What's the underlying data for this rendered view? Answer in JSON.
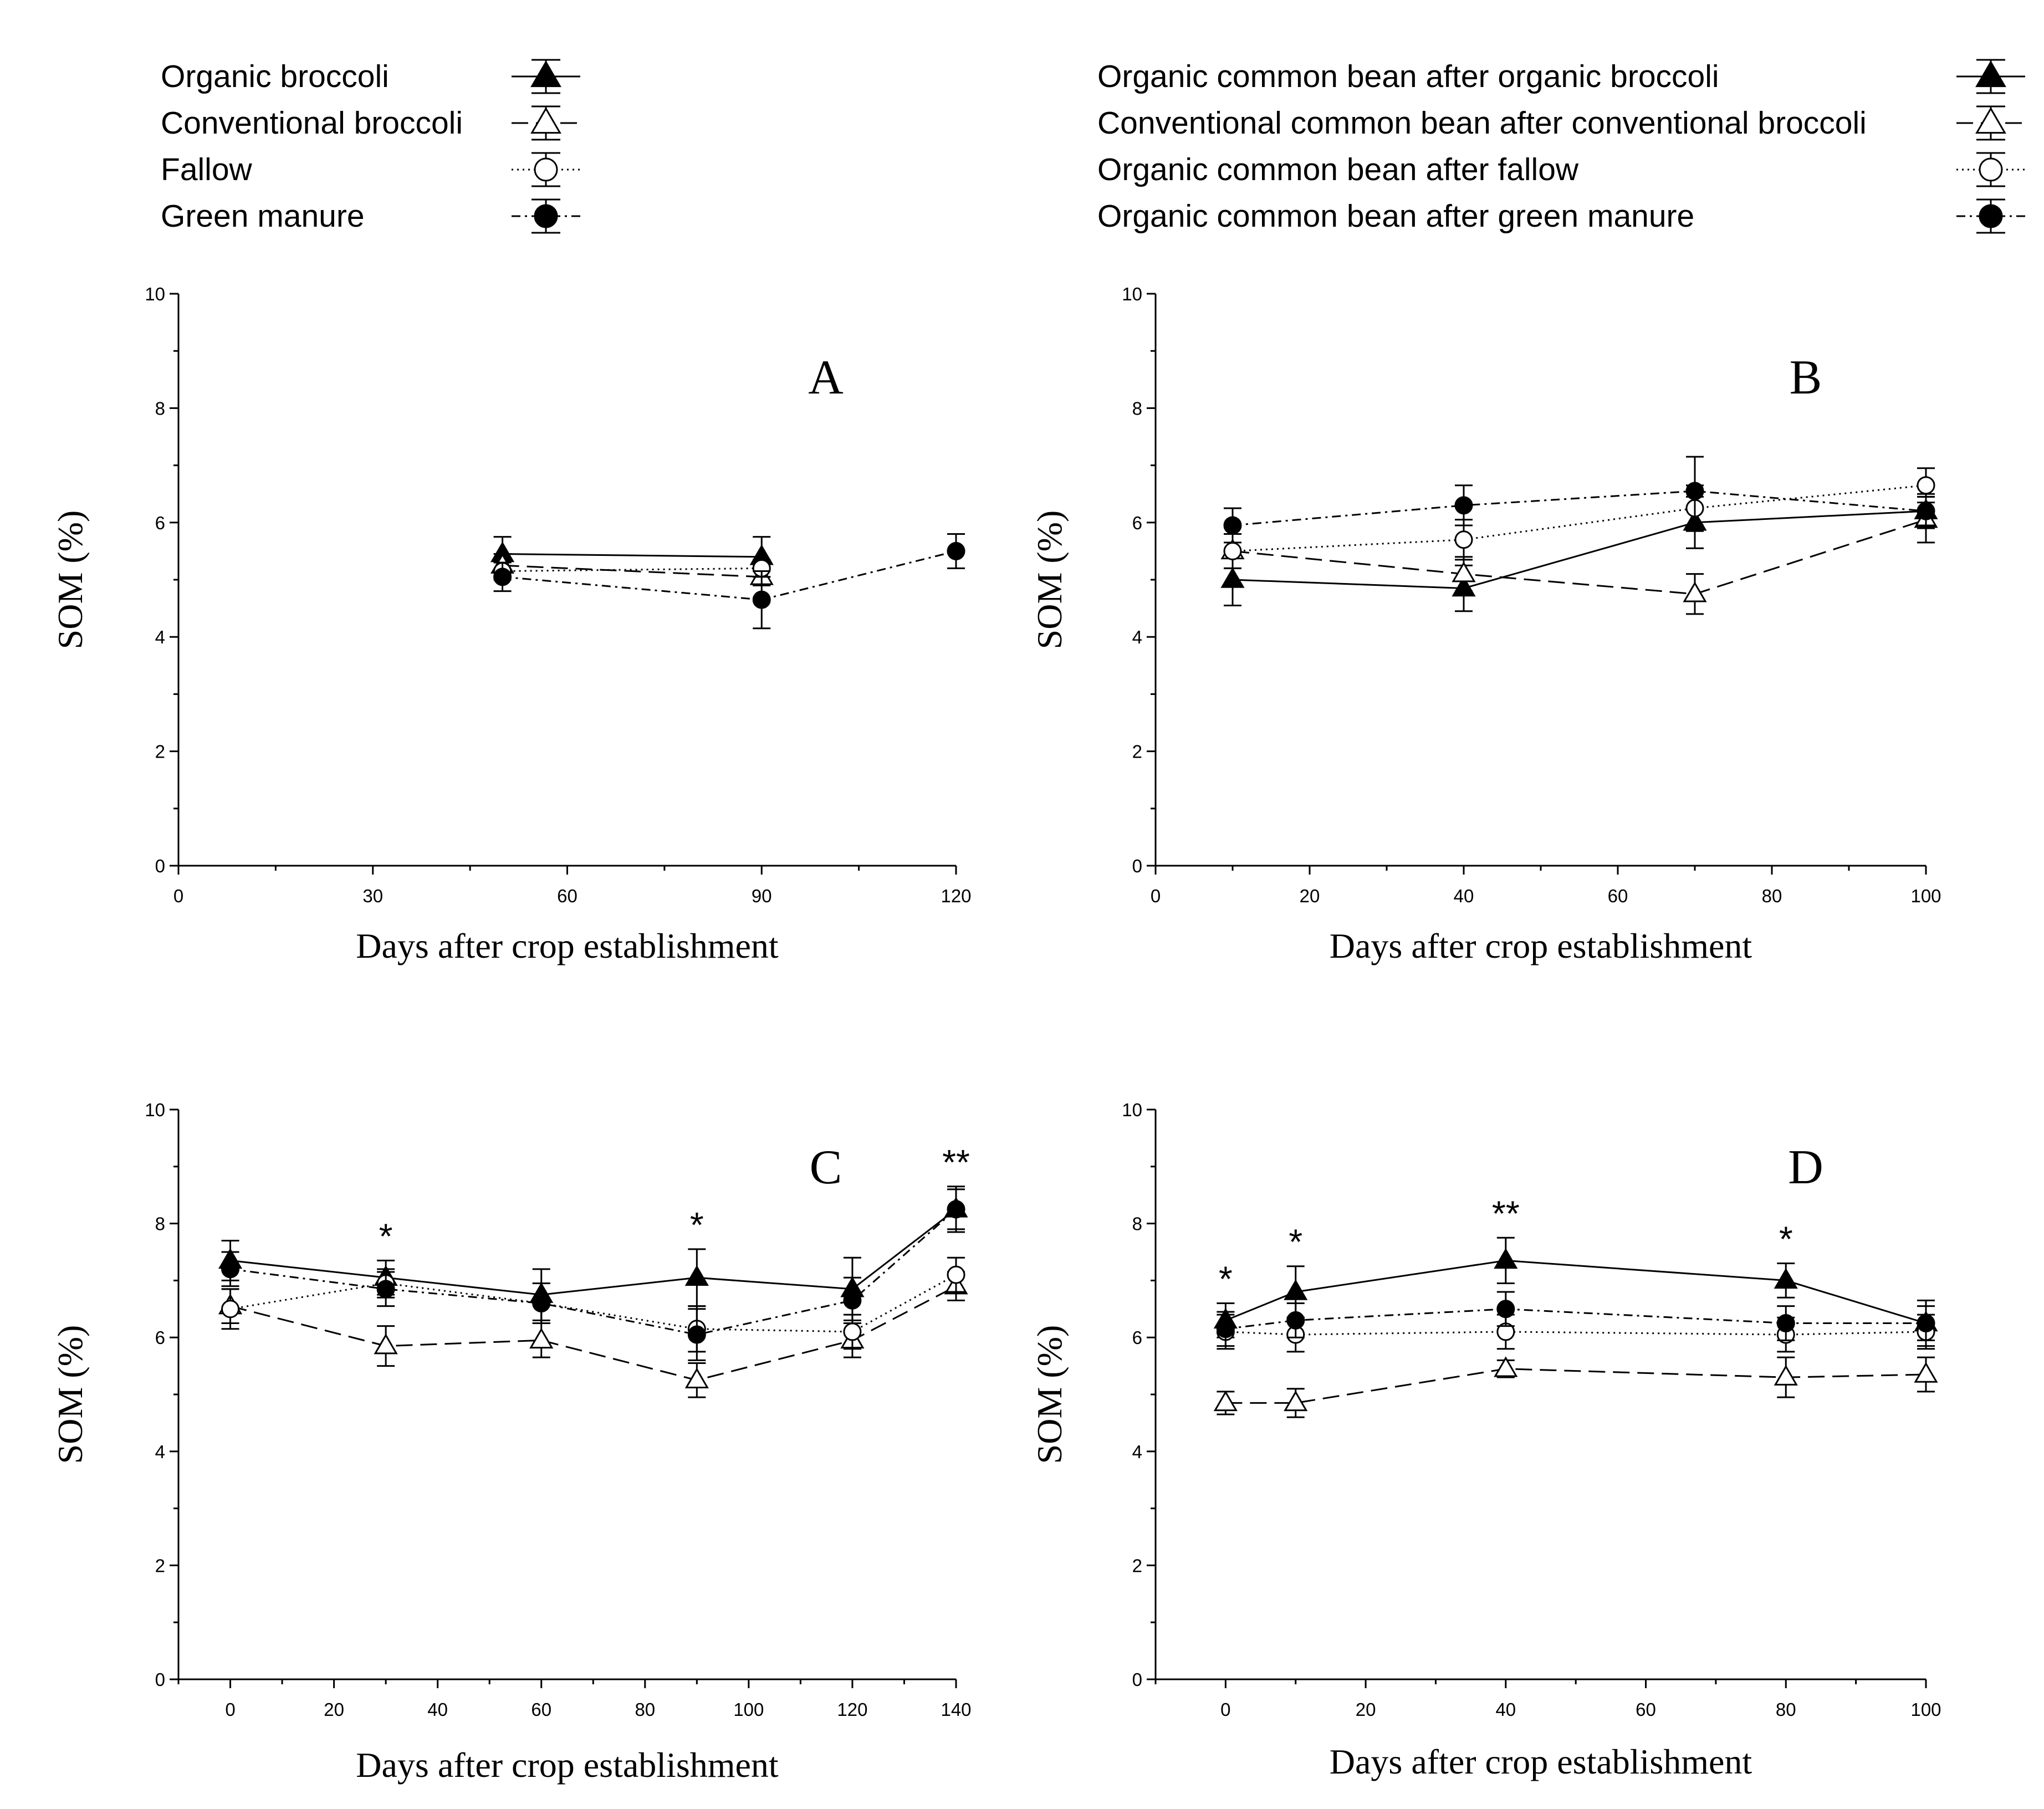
{
  "legend_left": [
    {
      "label": "Organic broccoli",
      "key": "s1"
    },
    {
      "label": "Conventional broccoli",
      "key": "s2"
    },
    {
      "label": "Fallow",
      "key": "s3"
    },
    {
      "label": "Green manure",
      "key": "s4"
    }
  ],
  "legend_right": [
    {
      "label": "Organic common bean after organic broccoli",
      "key": "s1"
    },
    {
      "label": "Conventional common bean after conventional broccoli",
      "key": "s2"
    },
    {
      "label": "Organic common bean after fallow",
      "key": "s3"
    },
    {
      "label": "Organic common bean after green manure",
      "key": "s4"
    }
  ],
  "series_styles": {
    "s1": {
      "marker": "triangle",
      "fill": "#000000",
      "dash": "none"
    },
    "s2": {
      "marker": "triangle",
      "fill": "#ffffff",
      "dash": "30 14"
    },
    "s3": {
      "marker": "circle",
      "fill": "#ffffff",
      "dash": "3 7"
    },
    "s4": {
      "marker": "circle",
      "fill": "#000000",
      "dash": "16 8 4 8"
    }
  },
  "chart_data": [
    {
      "type": "line",
      "panel": "A",
      "xlabel": "Days after crop establishment",
      "ylabel": "SOM (%)",
      "xlim": [
        0,
        120
      ],
      "xticks": [
        0,
        30,
        60,
        90,
        120
      ],
      "ylim": [
        0,
        10
      ],
      "yticks": [
        0,
        2,
        4,
        6,
        8,
        10
      ],
      "series": [
        {
          "key": "s1",
          "x": [
            50,
            90
          ],
          "y": [
            5.45,
            5.4
          ],
          "err": [
            0.3,
            0.35
          ]
        },
        {
          "key": "s2",
          "x": [
            50,
            90
          ],
          "y": [
            5.25,
            5.05
          ],
          "err": [
            0.2,
            0.15
          ]
        },
        {
          "key": "s3",
          "x": [
            50,
            90
          ],
          "y": [
            5.15,
            5.2
          ],
          "err": [
            0.15,
            0.15
          ]
        },
        {
          "key": "s4",
          "x": [
            50,
            90,
            120
          ],
          "y": [
            5.05,
            4.65,
            5.5
          ],
          "err": [
            0.25,
            0.5,
            0.3
          ]
        }
      ],
      "stars": []
    },
    {
      "type": "line",
      "panel": "B",
      "xlabel": "Days after crop establishment",
      "ylabel": "SOM (%)",
      "xlim": [
        0,
        100
      ],
      "xticks": [
        0,
        20,
        40,
        60,
        80,
        100
      ],
      "ylim": [
        0,
        10
      ],
      "yticks": [
        0,
        2,
        4,
        6,
        8,
        10
      ],
      "series": [
        {
          "key": "s1",
          "x": [
            10,
            40,
            70,
            100
          ],
          "y": [
            5.0,
            4.85,
            6.0,
            6.2
          ],
          "err": [
            0.45,
            0.4,
            0.45,
            0.3
          ]
        },
        {
          "key": "s2",
          "x": [
            10,
            40,
            70,
            100
          ],
          "y": [
            5.5,
            5.1,
            4.75,
            6.05
          ],
          "err": [
            0.3,
            0.3,
            0.35,
            0.4
          ]
        },
        {
          "key": "s3",
          "x": [
            10,
            40,
            70,
            100
          ],
          "y": [
            5.5,
            5.7,
            6.25,
            6.65
          ],
          "err": [
            0.3,
            0.35,
            0.4,
            0.3
          ]
        },
        {
          "key": "s4",
          "x": [
            10,
            40,
            70,
            100
          ],
          "y": [
            5.95,
            6.3,
            6.55,
            6.2
          ],
          "err": [
            0.3,
            0.35,
            0.6,
            0.25
          ]
        }
      ],
      "stars": []
    },
    {
      "type": "line",
      "panel": "C",
      "xlabel": "Days after crop establishment",
      "ylabel": "SOM (%)",
      "xlim": [
        -10,
        140
      ],
      "xticks": [
        0,
        20,
        40,
        60,
        80,
        100,
        120,
        140
      ],
      "ylim": [
        0,
        10
      ],
      "yticks": [
        0,
        2,
        4,
        6,
        8,
        10
      ],
      "series": [
        {
          "key": "s1",
          "x": [
            0,
            30,
            60,
            90,
            120,
            140
          ],
          "y": [
            7.35,
            7.05,
            6.75,
            7.05,
            6.85,
            8.25
          ],
          "err": [
            0.35,
            0.3,
            0.45,
            0.5,
            0.55,
            0.4
          ]
        },
        {
          "key": "s2",
          "x": [
            0,
            30,
            60,
            90,
            120,
            140
          ],
          "y": [
            6.55,
            5.85,
            5.95,
            5.25,
            5.95,
            6.9
          ],
          "err": [
            0.3,
            0.35,
            0.3,
            0.3,
            0.3,
            0.25
          ]
        },
        {
          "key": "s3",
          "x": [
            0,
            30,
            60,
            90,
            120,
            140
          ],
          "y": [
            6.5,
            6.95,
            6.6,
            6.15,
            6.1,
            7.1
          ],
          "err": [
            0.35,
            0.25,
            0.35,
            0.4,
            0.3,
            0.3
          ]
        },
        {
          "key": "s4",
          "x": [
            0,
            30,
            60,
            90,
            120,
            140
          ],
          "y": [
            7.2,
            6.85,
            6.6,
            6.05,
            6.65,
            8.25
          ],
          "err": [
            0.3,
            0.3,
            0.35,
            0.45,
            0.4,
            0.35
          ]
        }
      ],
      "stars": [
        {
          "x": 30,
          "label": "*"
        },
        {
          "x": 90,
          "label": "*"
        },
        {
          "x": 140,
          "label": "**"
        }
      ]
    },
    {
      "type": "line",
      "panel": "D",
      "xlabel": "Days after crop establishment",
      "ylabel": "SOM (%)",
      "xlim": [
        -10,
        100
      ],
      "xticks": [
        0,
        20,
        40,
        60,
        80,
        100
      ],
      "ylim": [
        0,
        10
      ],
      "yticks": [
        0,
        2,
        4,
        6,
        8,
        10
      ],
      "series": [
        {
          "key": "s1",
          "x": [
            0,
            10,
            40,
            80,
            100
          ],
          "y": [
            6.3,
            6.8,
            7.35,
            7.0,
            6.25
          ],
          "err": [
            0.3,
            0.45,
            0.4,
            0.3,
            0.4
          ]
        },
        {
          "key": "s2",
          "x": [
            0,
            10,
            40,
            80,
            100
          ],
          "y": [
            4.85,
            4.85,
            5.45,
            5.3,
            5.35
          ],
          "err": [
            0.2,
            0.25,
            0.15,
            0.35,
            0.3
          ]
        },
        {
          "key": "s3",
          "x": [
            0,
            10,
            40,
            80,
            100
          ],
          "y": [
            6.1,
            6.05,
            6.1,
            6.05,
            6.1
          ],
          "err": [
            0.3,
            0.3,
            0.3,
            0.3,
            0.3
          ]
        },
        {
          "key": "s4",
          "x": [
            0,
            10,
            40,
            80,
            100
          ],
          "y": [
            6.15,
            6.3,
            6.5,
            6.25,
            6.25
          ],
          "err": [
            0.3,
            0.3,
            0.3,
            0.3,
            0.3
          ]
        }
      ],
      "stars": [
        {
          "x": 0,
          "label": "*"
        },
        {
          "x": 10,
          "label": "*"
        },
        {
          "x": 40,
          "label": "**"
        },
        {
          "x": 80,
          "label": "*"
        }
      ]
    }
  ]
}
